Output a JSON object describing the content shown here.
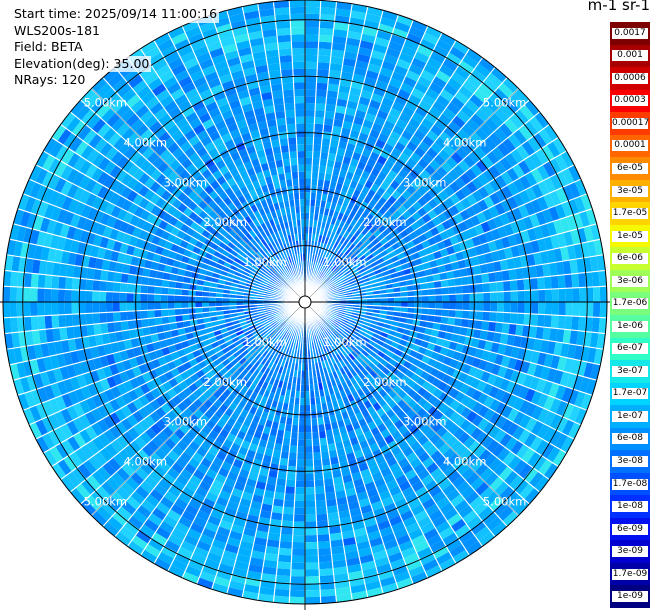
{
  "header": {
    "start_time": "Start time: 2025/09/14 11:00:16",
    "instrument": "WLS200s-181",
    "field": "Field: BETA",
    "elevation": "Elevation(deg): 35.00",
    "nrays": "NRays: 120"
  },
  "colorbar": {
    "title": "m-1 sr-1",
    "labels": [
      "0.0017",
      "0.001",
      "0.0006",
      "0.0003",
      "0.00017",
      "0.0001",
      "6e-05",
      "3e-05",
      "1.7e-05",
      "1e-05",
      "6e-06",
      "3e-06",
      "1.7e-06",
      "1e-06",
      "6e-07",
      "3e-07",
      "1.7e-07",
      "1e-07",
      "6e-08",
      "3e-08",
      "1.7e-08",
      "1e-08",
      "6e-09",
      "3e-09",
      "1.7e-09",
      "1e-09"
    ],
    "colors": [
      "#7f0000",
      "#a80000",
      "#d10000",
      "#fa0000",
      "#ff3c00",
      "#ff6600",
      "#ff8c00",
      "#ffb000",
      "#ffd400",
      "#f4f800",
      "#c8ff2e",
      "#a0ff56",
      "#7aff7d",
      "#55ffa1",
      "#2fffc6",
      "#14e8e8",
      "#00d4ff",
      "#00b0ff",
      "#0090ff",
      "#0070ff",
      "#0050ff",
      "#0030ff",
      "#0010f0",
      "#0000d0",
      "#0000a8",
      "#000080"
    ]
  },
  "chart_data": {
    "type": "ppi",
    "field": "BETA",
    "elevation_deg": 35.0,
    "nrays": 120,
    "range_rings_km": [
      1.0,
      2.0,
      3.0,
      4.0,
      5.0
    ],
    "ring_labels": [
      "1.00km",
      "2.00km",
      "3.00km",
      "4.00km",
      "5.00km"
    ],
    "max_range_km": 5.35,
    "unit": "m-1 sr-1",
    "color_scale": "log",
    "dominant_value_range": [
      1e-09,
      1.7e-07
    ],
    "grid": true
  }
}
